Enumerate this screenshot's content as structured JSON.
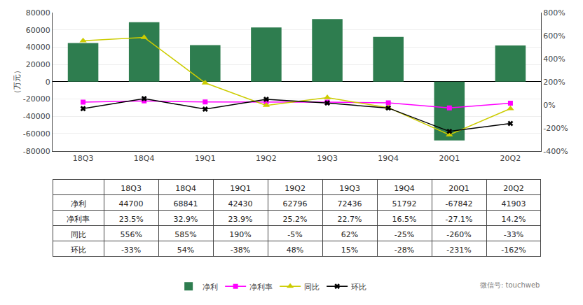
{
  "chart_data": [
    {
      "type": "bar",
      "categories": [
        "18Q3",
        "18Q4",
        "19Q1",
        "19Q2",
        "19Q3",
        "19Q4",
        "20Q1",
        "20Q2"
      ],
      "ylabel": "（万元）",
      "ylim": [
        -80000,
        80000
      ],
      "yticks": [
        -80000,
        -60000,
        -40000,
        -20000,
        0,
        20000,
        40000,
        60000,
        80000
      ],
      "y2lim": [
        -400,
        800
      ],
      "y2ticks": [
        {
          "value": -400,
          "label": "-400%"
        },
        {
          "value": -200,
          "label": "-200%"
        },
        {
          "value": 0,
          "label": "0%"
        },
        {
          "value": 200,
          "label": "200%"
        },
        {
          "value": 400,
          "label": "400%"
        },
        {
          "value": 600,
          "label": "600%"
        },
        {
          "value": 800,
          "label": "800%"
        }
      ],
      "grid": true,
      "legend": "bottom",
      "annotations": [
        {
          "text": "微信号: touchweb"
        }
      ],
      "series": [
        {
          "name": "净利",
          "type": "bar",
          "color": "#2e7d4f",
          "values": [
            44700,
            68841,
            42430,
            62796,
            72436,
            51792,
            -67842,
            41903
          ]
        },
        {
          "name": "净利率",
          "type": "line",
          "axis": "y2",
          "color": "#ff00ff",
          "marker": "square",
          "values": [
            23.5,
            32.9,
            23.9,
            25.2,
            22.7,
            16.5,
            -27.1,
            14.2
          ]
        },
        {
          "name": "同比",
          "type": "line",
          "axis": "y2",
          "color": "#cccc00",
          "marker": "triangle-up",
          "values": [
            556,
            585,
            190,
            -5,
            62,
            -25,
            -260,
            -33
          ]
        },
        {
          "name": "环比",
          "type": "line",
          "axis": "y2",
          "color": "#000000",
          "marker": "x",
          "values": [
            -33,
            54,
            -38,
            48,
            15,
            -28,
            -231,
            -162
          ]
        }
      ]
    },
    {
      "type": "table",
      "categories": [
        "18Q3",
        "18Q4",
        "19Q1",
        "19Q2",
        "19Q3",
        "19Q4",
        "20Q1",
        "20Q2"
      ],
      "series": [
        {
          "name": "净利",
          "values": [
            44700,
            68841,
            42430,
            62796,
            72436,
            51792,
            -67842,
            41903
          ]
        },
        {
          "name": "净利率",
          "values": [
            23.5,
            32.9,
            23.9,
            25.2,
            22.7,
            16.5,
            -27.1,
            14.2
          ],
          "value_labels": [
            "23.5%",
            "32.9%",
            "23.9%",
            "25.2%",
            "22.7%",
            "16.5%",
            "-27.1%",
            "14.2%"
          ]
        },
        {
          "name": "同比",
          "values": [
            556,
            585,
            190,
            -5,
            62,
            -25,
            -260,
            -33
          ],
          "value_labels": [
            "556%",
            "585%",
            "190%",
            "-5%",
            "62%",
            "-25%",
            "-260%",
            "-33%"
          ]
        },
        {
          "name": "环比",
          "values": [
            -33,
            54,
            -38,
            48,
            15,
            -28,
            -231,
            -162
          ],
          "value_labels": [
            "-33%",
            "54%",
            "-38%",
            "48%",
            "15%",
            "-28%",
            "-231%",
            "-162%"
          ]
        }
      ]
    }
  ]
}
